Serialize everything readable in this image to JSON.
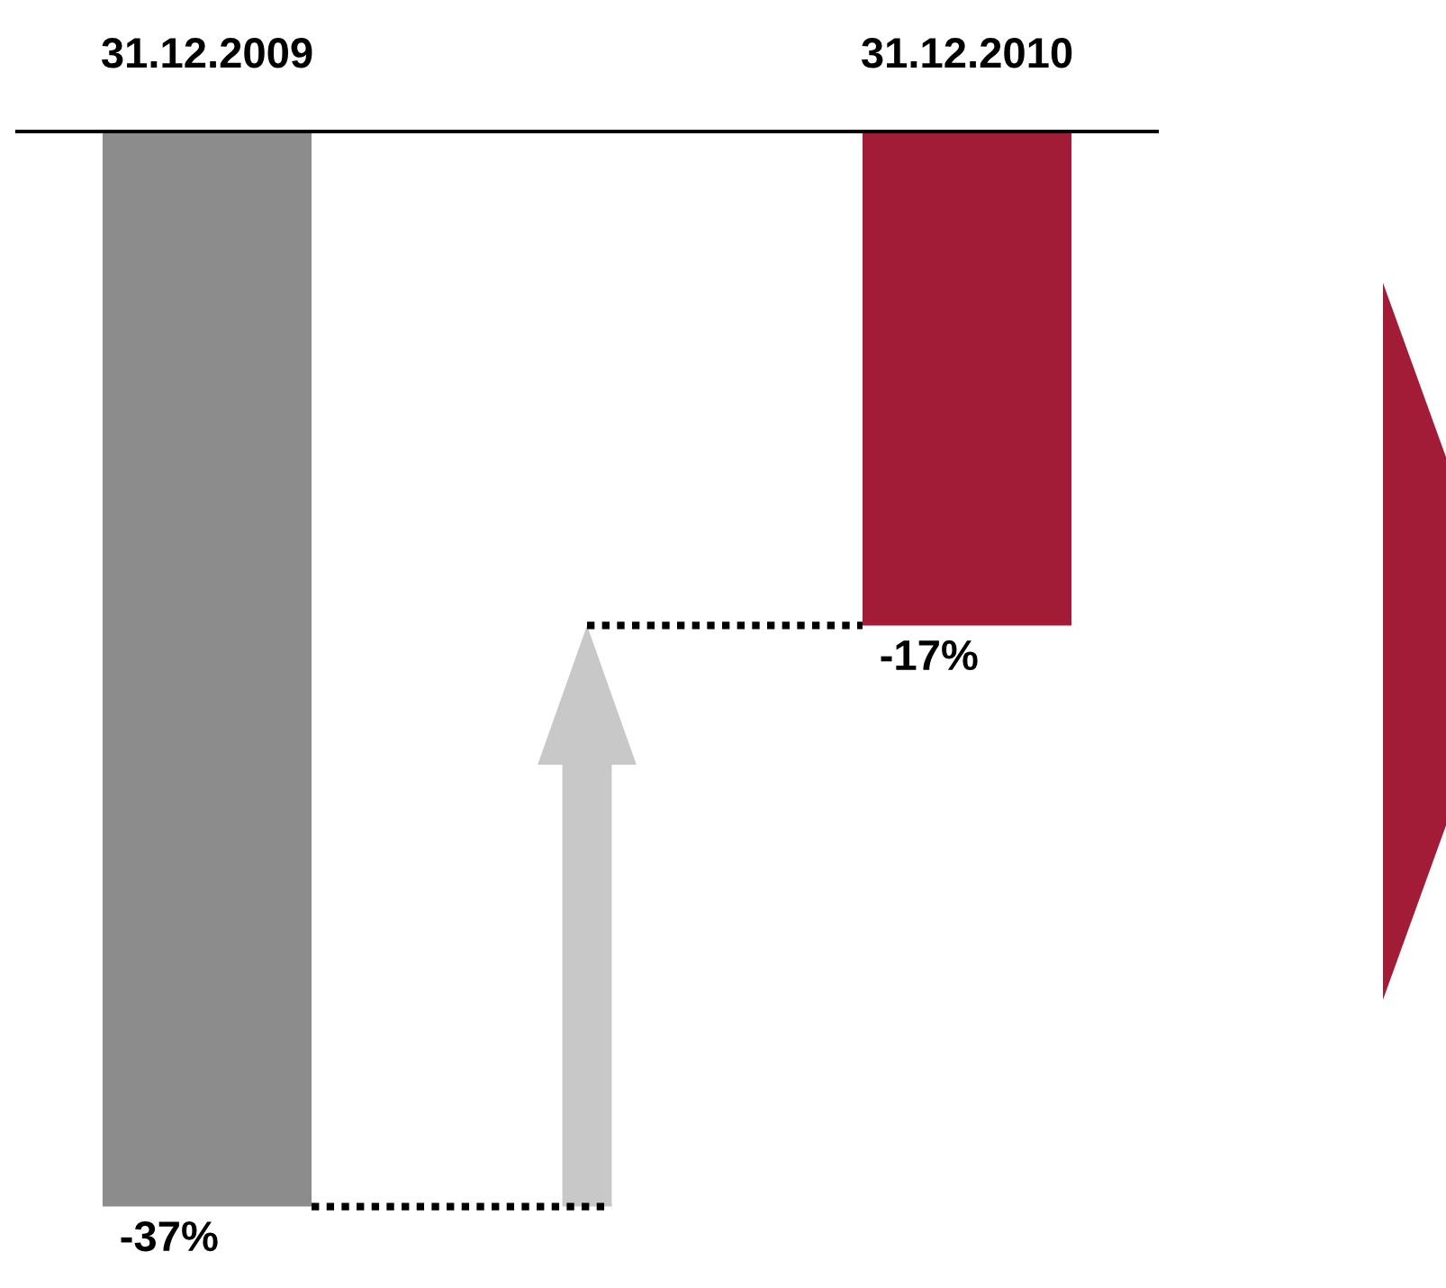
{
  "chart_data": {
    "type": "bar",
    "categories": [
      "31.12.2009",
      null,
      "31.12.2010"
    ],
    "values": [
      -37,
      null,
      -17
    ],
    "colors": [
      "#8c8c8c",
      "#c8c8c8",
      "#a31c37"
    ],
    "value_labels": [
      "-37%",
      null,
      "-17%"
    ]
  }
}
